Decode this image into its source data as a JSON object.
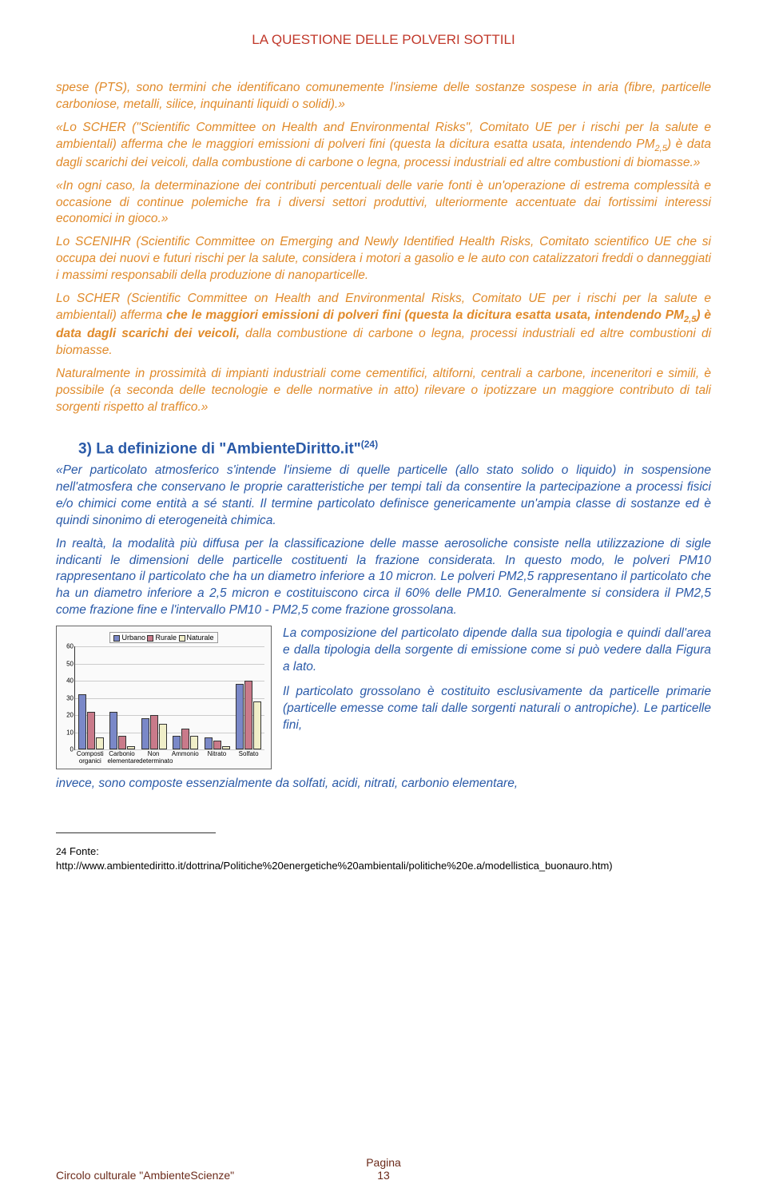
{
  "colors": {
    "header": "#c1392b",
    "blue": "#2a5aa8",
    "orange": "#e08a2a",
    "darkred": "#6b2a1a",
    "footer": "#6b2a1a"
  },
  "header": {
    "title": "LA QUESTIONE DELLE POLVERI SOTTILI"
  },
  "p1": "spese (PTS), sono termini che identificano comunemente l'insieme delle sostanze sospese in aria (fibre, particelle carboniose, metalli, silice, inquinanti liquidi o solidi).»",
  "p2a": "«Lo SCHER (\"Scientific Committee on Health and Environmental Risks\", Comitato UE per i rischi per la salute e ambientali) afferma che le maggiori emissioni di polveri fini (questa la dicitura esatta usata, intendendo PM",
  "p2sub": "2,5",
  "p2b": ") è data dagli scarichi dei veicoli, dalla combustione di carbone o legna, processi industriali ed altre combustioni di biomasse.»",
  "p3": "«In ogni caso, la determinazione dei contributi percentuali delle varie fonti è un'operazione di estrema complessità e occasione di continue polemiche fra i diversi settori produttivi, ulteriormente accentuate dai fortissimi interessi economici in gioco.»",
  "p4": "Lo SCENIHR (Scientific Committee on Emerging and Newly Identified Health Risks, Comitato scientifico UE che si occupa dei nuovi e futuri rischi per la salute, considera i motori a gasolio e le auto con catalizzatori freddi o danneggiati i massimi responsabili della produzione di nanoparticelle.",
  "p5a": "Lo SCHER (Scientific Committee on Health and Environmental Risks, Comitato UE per i rischi per la salute e ambientali) afferma ",
  "p5bold1": "che le maggiori emissioni di polveri fini (questa la dicitura esatta usata, intendendo PM",
  "p5sub": "2,5",
  "p5bold2": ") è data dagli scarichi dei veicoli,",
  "p5b": " dalla combustione di carbone o legna, processi industriali ed altre combustioni di biomasse.",
  "p6": "Naturalmente in prossimità di impianti industriali come cementifici, altiforni, centrali a carbone, inceneritori e simili, è possibile (a seconda delle tecnologie e delle normative in atto) rilevare o ipotizzare un maggiore contributo di tali sorgenti rispetto al traffico.»",
  "section3": {
    "num": "3)",
    "title": "La definizione di \"AmbienteDiritto.it\"",
    "ref": "(24)"
  },
  "p7": "«Per particolato atmosferico s'intende l'insieme di quelle particelle (allo stato solido o liquido) in sospensione nell'atmosfera che conservano le proprie caratteristiche per tempi tali da consentire la partecipazione a processi fisici e/o chimici come entità a sé stanti. Il termine particolato definisce genericamente un'ampia classe di sostanze ed è quindi sinonimo di eterogeneità chimica.",
  "p8": "In realtà, la modalità più diffusa per la classificazione delle masse aerosoliche consiste nella utilizzazione di sigle indicanti le dimensioni delle particelle costituenti la frazione considerata. In questo modo, le polveri PM10 rappresentano il particolato che ha un diametro inferiore a 10 micron. Le polveri PM2,5 rappresentano il particolato che ha un diametro inferiore a 2,5 micron e costituiscono circa il 60% delle PM10. Generalmente si considera il PM2,5 come frazione fine e l'intervallo PM10 - PM2,5 come frazione grossolana.",
  "p9": "La composizione del particolato dipende dalla sua tipologia e quindi dall'area e dalla tipologia della sorgente di emissione come si può vedere dalla Figura a lato.",
  "p10": "Il particolato grossolano è costituito esclusivamente da particelle primarie (particelle emesse come tali dalle sorgenti naturali o antropiche). Le particelle fini,",
  "p11": "invece, sono composte essenzialmente da solfati, acidi, nitrati, carbonio elementare,",
  "chart": {
    "legend": [
      "Urbano",
      "Rurale",
      "Naturale"
    ],
    "series_colors": [
      "#7a88c8",
      "#c97a8a",
      "#f0eec8"
    ],
    "categories": [
      "Composti organici",
      "Carbonio elementare",
      "Non determinato",
      "Ammonio",
      "Nitrato",
      "Solfato"
    ],
    "values": [
      [
        32,
        22,
        7
      ],
      [
        22,
        8,
        2
      ],
      [
        18,
        20,
        15
      ],
      [
        8,
        12,
        8
      ],
      [
        7,
        5,
        2
      ],
      [
        38,
        40,
        28
      ]
    ],
    "ymax": 60,
    "yticks": [
      0,
      10,
      20,
      30,
      40,
      50,
      60
    ]
  },
  "footnote": {
    "num": "24",
    "label": "Fonte:",
    "url": "http://www.ambientediritto.it/dottrina/Politiche%20energetiche%20ambientali/politiche%20e.a/modellistica_buonauro.htm)"
  },
  "footer": {
    "left": "Circolo culturale \"AmbienteScienze\"",
    "page_label": "Pagina",
    "page_num": "13"
  }
}
